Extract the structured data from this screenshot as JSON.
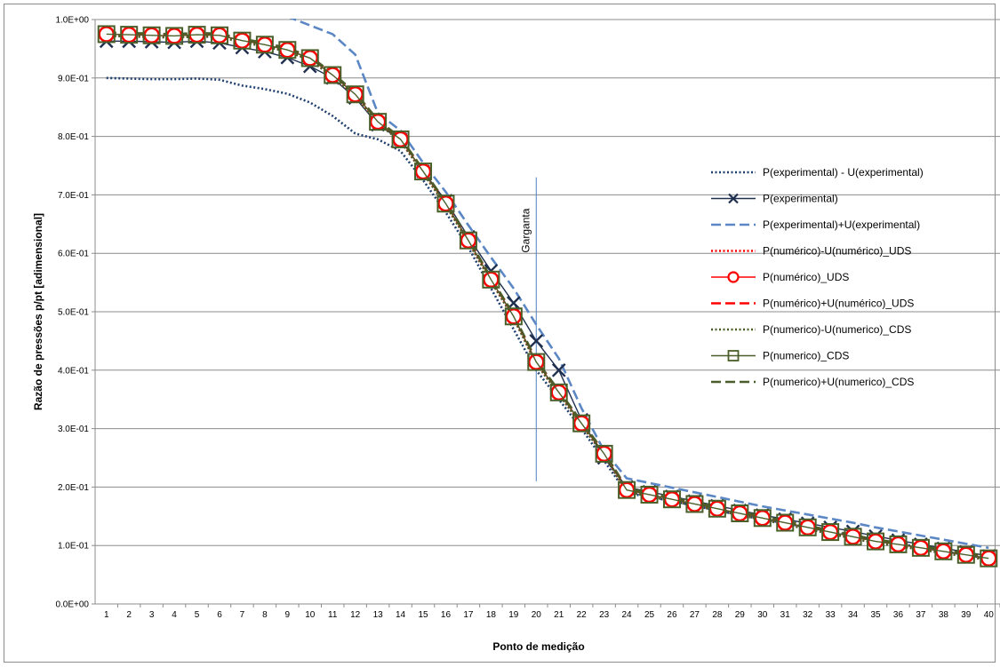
{
  "chart_data": {
    "type": "line",
    "title": "",
    "xlabel": "Ponto de medição",
    "ylabel": "Razão de pressões  p/pt [adimensional]",
    "ylim": [
      0,
      1
    ],
    "yticks": [
      "0.0E+00",
      "1.0E-01",
      "2.0E-01",
      "3.0E-01",
      "4.0E-01",
      "5.0E-01",
      "6.0E-01",
      "7.0E-01",
      "8.0E-01",
      "9.0E-01",
      "1.0E+00"
    ],
    "x": [
      1,
      2,
      3,
      4,
      5,
      6,
      7,
      8,
      9,
      10,
      11,
      12,
      13,
      14,
      15,
      16,
      17,
      18,
      19,
      20,
      21,
      22,
      23,
      24,
      25,
      26,
      27,
      28,
      29,
      30,
      31,
      32,
      33,
      34,
      35,
      36,
      37,
      38,
      39,
      40
    ],
    "grid": "horizontal",
    "legend_position": "right",
    "annotation": {
      "text": "Garganta",
      "x": 20,
      "y_from": 0.21,
      "y_to": 0.73
    },
    "series": [
      {
        "name": "P(experimental) - U(experimental)",
        "color": "#1f3f6e",
        "style": "dotted",
        "marker": "none",
        "values": [
          0.9,
          0.899,
          0.898,
          0.898,
          0.899,
          0.897,
          0.887,
          0.881,
          0.873,
          0.858,
          0.835,
          0.805,
          0.795,
          0.775,
          0.725,
          0.67,
          0.61,
          0.54,
          0.47,
          0.4,
          0.35,
          0.3,
          0.245,
          0.19,
          0.183,
          0.176,
          0.168,
          0.16,
          0.152,
          0.145,
          0.138,
          0.131,
          0.124,
          0.117,
          0.11,
          0.103,
          0.097,
          0.09,
          0.084,
          0.077
        ]
      },
      {
        "name": "P(experimental)",
        "color": "#1f2f4f",
        "style": "solid",
        "marker": "x",
        "values": [
          0.963,
          0.963,
          0.962,
          0.961,
          0.963,
          0.96,
          0.952,
          0.945,
          0.935,
          0.92,
          0.9,
          0.866,
          0.82,
          0.795,
          0.74,
          0.69,
          0.628,
          0.57,
          0.515,
          0.45,
          0.4,
          0.315,
          0.25,
          0.2,
          0.192,
          0.184,
          0.176,
          0.168,
          0.16,
          0.152,
          0.145,
          0.138,
          0.131,
          0.124,
          0.116,
          0.109,
          0.102,
          0.095,
          0.089,
          0.082
        ]
      },
      {
        "name": "P(experimental)+U(experimental)",
        "color": "#5b87c5",
        "style": "dashed",
        "marker": "none",
        "values": [
          1.03,
          1.03,
          1.03,
          1.03,
          1.03,
          1.03,
          1.03,
          1.03,
          1.005,
          0.99,
          0.975,
          0.94,
          0.84,
          0.81,
          0.755,
          0.705,
          0.648,
          0.593,
          0.54,
          0.478,
          0.42,
          0.335,
          0.262,
          0.215,
          0.207,
          0.199,
          0.191,
          0.183,
          0.175,
          0.167,
          0.16,
          0.153,
          0.146,
          0.139,
          0.131,
          0.124,
          0.117,
          0.11,
          0.103,
          0.096
        ]
      },
      {
        "name": "P(numérico)-U(numérico)_UDS",
        "color": "#ff0000",
        "style": "dotted",
        "marker": "none",
        "values": [
          0.973,
          0.972,
          0.971,
          0.97,
          0.972,
          0.971,
          0.962,
          0.955,
          0.946,
          0.932,
          0.903,
          0.87,
          0.823,
          0.793,
          0.738,
          0.683,
          0.62,
          0.553,
          0.49,
          0.412,
          0.36,
          0.307,
          0.255,
          0.193,
          0.185,
          0.177,
          0.169,
          0.161,
          0.153,
          0.145,
          0.137,
          0.129,
          0.121,
          0.113,
          0.105,
          0.1,
          0.094,
          0.088,
          0.082,
          0.076
        ]
      },
      {
        "name": "P(numérico)_UDS",
        "color": "#ff0000",
        "style": "solid",
        "marker": "circle",
        "values": [
          0.975,
          0.974,
          0.973,
          0.972,
          0.974,
          0.973,
          0.964,
          0.957,
          0.948,
          0.934,
          0.905,
          0.872,
          0.825,
          0.795,
          0.74,
          0.685,
          0.622,
          0.555,
          0.492,
          0.414,
          0.362,
          0.309,
          0.257,
          0.195,
          0.187,
          0.179,
          0.171,
          0.163,
          0.155,
          0.147,
          0.139,
          0.131,
          0.123,
          0.115,
          0.107,
          0.102,
          0.096,
          0.09,
          0.084,
          0.078
        ]
      },
      {
        "name": "P(numérico)+U(numérico)_UDS",
        "color": "#ff0000",
        "style": "dashed",
        "marker": "none",
        "values": [
          0.977,
          0.976,
          0.975,
          0.974,
          0.976,
          0.975,
          0.966,
          0.959,
          0.95,
          0.936,
          0.907,
          0.874,
          0.827,
          0.797,
          0.742,
          0.687,
          0.624,
          0.557,
          0.494,
          0.416,
          0.364,
          0.311,
          0.259,
          0.197,
          0.189,
          0.181,
          0.173,
          0.165,
          0.157,
          0.149,
          0.141,
          0.133,
          0.125,
          0.117,
          0.109,
          0.104,
          0.098,
          0.092,
          0.086,
          0.08
        ]
      },
      {
        "name": "P(numerico)-U(numerico)_CDS",
        "color": "#4a5e2a",
        "style": "dotted",
        "marker": "none",
        "values": [
          0.972,
          0.971,
          0.97,
          0.969,
          0.971,
          0.97,
          0.961,
          0.954,
          0.945,
          0.931,
          0.902,
          0.869,
          0.822,
          0.792,
          0.737,
          0.682,
          0.619,
          0.552,
          0.489,
          0.411,
          0.359,
          0.306,
          0.254,
          0.192,
          0.184,
          0.176,
          0.168,
          0.16,
          0.152,
          0.144,
          0.136,
          0.128,
          0.12,
          0.112,
          0.104,
          0.099,
          0.093,
          0.087,
          0.081,
          0.075
        ]
      },
      {
        "name": "P(numerico)_CDS",
        "color": "#4a5e2a",
        "style": "solid",
        "marker": "square",
        "values": [
          0.975,
          0.974,
          0.973,
          0.972,
          0.974,
          0.973,
          0.964,
          0.957,
          0.948,
          0.934,
          0.905,
          0.872,
          0.825,
          0.795,
          0.74,
          0.685,
          0.622,
          0.555,
          0.492,
          0.414,
          0.362,
          0.309,
          0.257,
          0.195,
          0.187,
          0.179,
          0.171,
          0.163,
          0.155,
          0.147,
          0.139,
          0.131,
          0.123,
          0.115,
          0.107,
          0.102,
          0.096,
          0.09,
          0.084,
          0.078
        ]
      },
      {
        "name": "P(numerico)+U(numerico)_CDS",
        "color": "#4a5e2a",
        "style": "dashed",
        "marker": "none",
        "values": [
          0.978,
          0.977,
          0.976,
          0.975,
          0.977,
          0.976,
          0.967,
          0.96,
          0.951,
          0.937,
          0.908,
          0.875,
          0.828,
          0.798,
          0.743,
          0.688,
          0.625,
          0.558,
          0.495,
          0.417,
          0.365,
          0.312,
          0.26,
          0.198,
          0.19,
          0.182,
          0.174,
          0.166,
          0.158,
          0.15,
          0.142,
          0.134,
          0.126,
          0.118,
          0.11,
          0.105,
          0.099,
          0.093,
          0.087,
          0.081
        ]
      }
    ]
  }
}
